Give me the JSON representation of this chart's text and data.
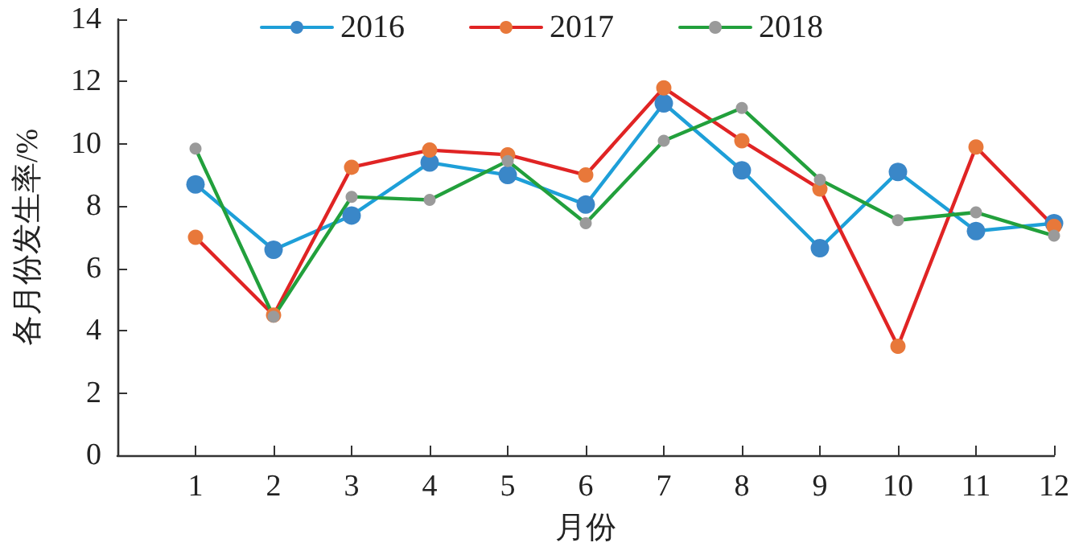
{
  "chart_data": {
    "type": "line",
    "xlabel": "月份",
    "ylabel": "各月份发生率/%",
    "x": [
      1,
      2,
      3,
      4,
      5,
      6,
      7,
      8,
      9,
      10,
      11,
      12
    ],
    "xlim": [
      0,
      12
    ],
    "xticks": [
      1,
      2,
      3,
      4,
      5,
      6,
      7,
      8,
      9,
      10,
      11,
      12
    ],
    "ylim": [
      0,
      14
    ],
    "yticks": [
      0,
      2,
      4,
      6,
      8,
      10,
      12,
      14
    ],
    "grid": false,
    "legend": "top",
    "marker": "circle",
    "line_style": "solid",
    "series": [
      {
        "name": "2016",
        "color": "#1e9fd8",
        "colors": [
          "#3a87c8",
          "#3a87c8",
          "#3a87c8",
          "#3a87c8",
          "#3a87c8",
          "#3a87c8",
          "#3a87c8",
          "#3a87c8",
          "#3a87c8",
          "#3a87c8",
          "#3a87c8",
          "#3a87c8"
        ],
        "values": [
          8.7,
          6.6,
          7.7,
          9.4,
          9.0,
          8.05,
          11.3,
          9.15,
          6.65,
          9.1,
          7.2,
          7.45
        ]
      },
      {
        "name": "2017",
        "color": "#e02424",
        "colors": [
          "#e8783a",
          "#e8783a",
          "#e8783a",
          "#e8783a",
          "#e8783a",
          "#e8783a",
          "#e8783a",
          "#e8783a",
          "#e8783a",
          "#e8783a",
          "#e8783a",
          "#e8783a"
        ],
        "values": [
          7.0,
          4.5,
          9.25,
          9.8,
          9.65,
          9.0,
          11.8,
          10.1,
          8.55,
          3.5,
          9.9,
          7.35
        ]
      },
      {
        "name": "2018",
        "color": "#22a03c",
        "colors": [
          "#9a9a9a",
          "#9a9a9a",
          "#9a9a9a",
          "#9a9a9a",
          "#9a9a9a",
          "#9a9a9a",
          "#9a9a9a",
          "#9a9a9a",
          "#9a9a9a",
          "#9a9a9a",
          "#9a9a9a",
          "#9a9a9a"
        ],
        "values": [
          9.85,
          4.45,
          8.3,
          8.2,
          9.45,
          7.45,
          10.1,
          11.15,
          8.85,
          7.55,
          7.8,
          7.05
        ]
      }
    ]
  }
}
